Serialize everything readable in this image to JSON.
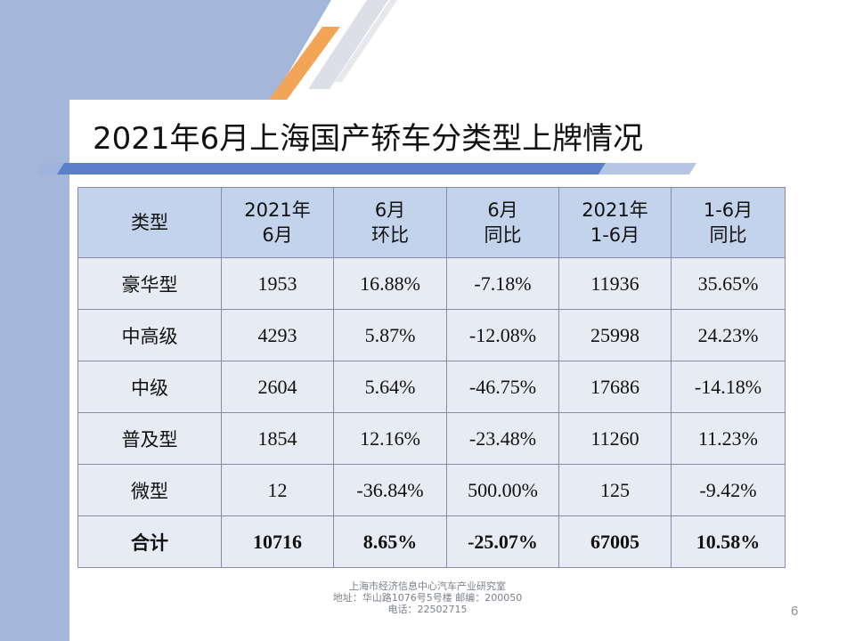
{
  "slide": {
    "title": "2021年6月上海国产轿车分类型上牌情况",
    "page_number": "6",
    "colors": {
      "header_fill": "#c3d3ec",
      "body_fill": "#e7ebf4",
      "accent_orange": "#f0a050",
      "side_blue": "#a4b7da",
      "band_blue": "#5a7fc8"
    }
  },
  "table": {
    "headers": [
      {
        "line1": "类型",
        "line2": ""
      },
      {
        "line1": "2021年",
        "line2": "6月"
      },
      {
        "line1": "6月",
        "line2": "环比"
      },
      {
        "line1": "6月",
        "line2": "同比"
      },
      {
        "line1": "2021年",
        "line2": "1-6月"
      },
      {
        "line1": "1-6月",
        "line2": "同比"
      }
    ],
    "rows": [
      [
        "豪华型",
        "1953",
        "16.88%",
        "-7.18%",
        "11936",
        "35.65%"
      ],
      [
        "中高级",
        "4293",
        "5.87%",
        "-12.08%",
        "25998",
        "24.23%"
      ],
      [
        "中级",
        "2604",
        "5.64%",
        "-46.75%",
        "17686",
        "-14.18%"
      ],
      [
        "普及型",
        "1854",
        "12.16%",
        "-23.48%",
        "11260",
        "11.23%"
      ],
      [
        "微型",
        "12",
        "-36.84%",
        "500.00%",
        "125",
        "-9.42%"
      ],
      [
        "合计",
        "10716",
        "8.65%",
        "-25.07%",
        "67005",
        "10.58%"
      ]
    ]
  },
  "footer": {
    "line1": "上海市经济信息中心汽车产业研究室",
    "line2": "地址：华山路1076号5号楼    邮编：200050",
    "line3": "电话：22502715"
  }
}
